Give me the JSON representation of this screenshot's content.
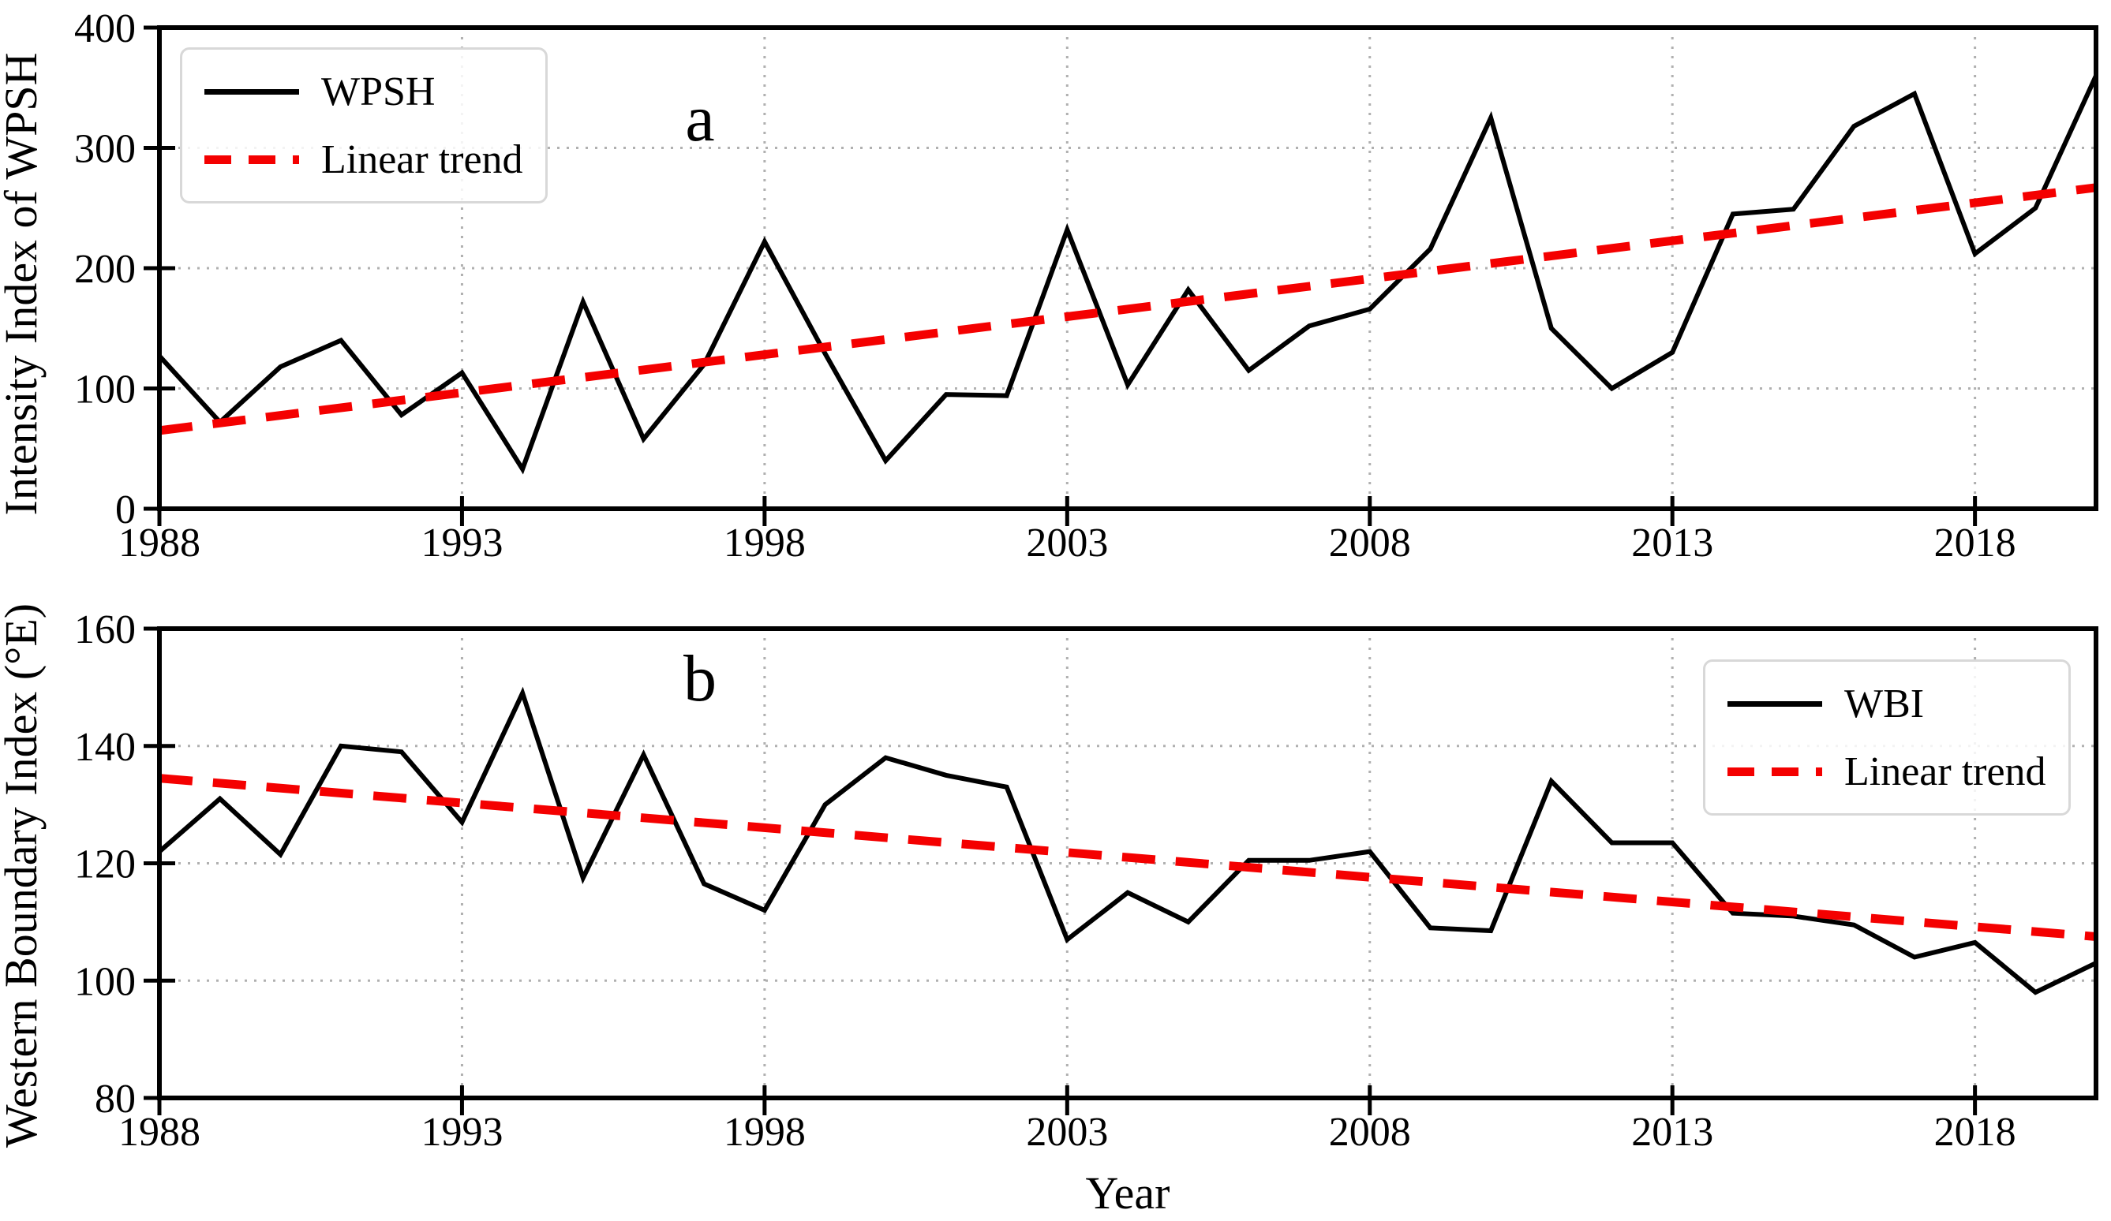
{
  "figure": {
    "background": "#ffffff"
  },
  "colors": {
    "series": "#000000",
    "trend": "#f40000",
    "grid": "#b0b0b0",
    "spine": "#000000",
    "legend_border": "#d8d8d8",
    "legend_bg": "#ffffff"
  },
  "xlabel": "Year",
  "chart_data": [
    {
      "type": "line",
      "panel_label": "a",
      "ylabel": "Intensity Index of WPSH",
      "xlabel": "",
      "ylim": [
        0,
        400
      ],
      "yticks": [
        0,
        100,
        200,
        300,
        400
      ],
      "xlim": [
        1988,
        2020
      ],
      "xticks": [
        1988,
        1993,
        1998,
        2003,
        2008,
        2013,
        2018
      ],
      "grid": "dotted",
      "legend_position": "upper-left",
      "legend": [
        {
          "label": "WPSH",
          "swatch": "solid-black"
        },
        {
          "label": "Linear trend",
          "swatch": "dashed-red"
        }
      ],
      "years": [
        1988,
        1989,
        1990,
        1991,
        1992,
        1993,
        1994,
        1995,
        1996,
        1997,
        1998,
        1999,
        2000,
        2001,
        2002,
        2003,
        2004,
        2005,
        2006,
        2007,
        2008,
        2009,
        2010,
        2011,
        2012,
        2013,
        2014,
        2015,
        2016,
        2017,
        2018,
        2019,
        2020
      ],
      "series": [
        {
          "name": "WPSH",
          "color": "#000000",
          "style": "solid",
          "values": [
            127,
            72,
            118,
            140,
            78,
            113,
            33,
            172,
            58,
            120,
            222,
            129,
            40,
            95,
            94,
            232,
            103,
            182,
            115,
            152,
            166,
            216,
            325,
            150,
            100,
            130,
            245,
            249,
            318,
            345,
            212,
            250,
            360
          ]
        }
      ],
      "trend": {
        "name": "Linear trend",
        "color": "#f40000",
        "style": "dashed",
        "x": [
          1988,
          2020
        ],
        "values": [
          65,
          267
        ]
      }
    },
    {
      "type": "line",
      "panel_label": "b",
      "ylabel": "Western Boundary Index (°E)",
      "xlabel": "Year",
      "ylim": [
        80,
        160
      ],
      "yticks": [
        80,
        100,
        120,
        140,
        160
      ],
      "xlim": [
        1988,
        2020
      ],
      "xticks": [
        1988,
        1993,
        1998,
        2003,
        2008,
        2013,
        2018
      ],
      "grid": "dotted",
      "legend_position": "upper-right",
      "legend": [
        {
          "label": "WBI",
          "swatch": "solid-black"
        },
        {
          "label": "Linear trend",
          "swatch": "dashed-red"
        }
      ],
      "years": [
        1988,
        1989,
        1990,
        1991,
        1992,
        1993,
        1994,
        1995,
        1996,
        1997,
        1998,
        1999,
        2000,
        2001,
        2002,
        2003,
        2004,
        2005,
        2006,
        2007,
        2008,
        2009,
        2010,
        2011,
        2012,
        2013,
        2014,
        2015,
        2016,
        2017,
        2018,
        2019,
        2020
      ],
      "series": [
        {
          "name": "WBI",
          "color": "#000000",
          "style": "solid",
          "values": [
            122,
            131,
            121.5,
            140,
            139,
            127,
            149,
            117.5,
            138.5,
            116.5,
            112,
            130,
            138,
            135,
            133,
            107,
            115,
            110,
            120.5,
            120.5,
            122,
            109,
            108.5,
            134,
            123.5,
            123.5,
            111.5,
            111,
            109.5,
            104,
            106.5,
            98,
            103
          ]
        }
      ],
      "trend": {
        "name": "Linear trend",
        "color": "#f40000",
        "style": "dashed",
        "x": [
          1988,
          2020
        ],
        "values": [
          134.5,
          107.5
        ]
      }
    }
  ]
}
